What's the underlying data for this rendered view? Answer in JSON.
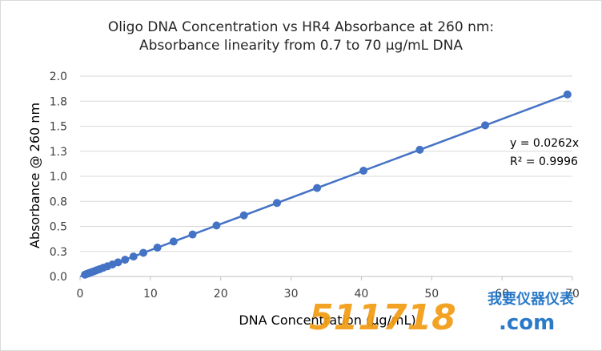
{
  "chart_data": {
    "type": "scatter",
    "title": "Oligo DNA Concentration vs HR4 Absorbance at 260 nm:",
    "subtitle": "Absorbance linearity from 0.7 to 70 µg/mL DNA",
    "xlabel": "DNA Concentration (µg/mL)",
    "ylabel": "Absorbance @ 260 nm",
    "xlim": [
      0,
      70
    ],
    "ylim": [
      0,
      2.0
    ],
    "x_ticks": [
      "0",
      "10",
      "20",
      "30",
      "40",
      "50",
      "60",
      "70"
    ],
    "y_ticks": [
      "0.0",
      "0.3",
      "0.5",
      "0.8",
      "1.0",
      "1.3",
      "1.5",
      "1.8",
      "2.0"
    ],
    "grid": "horizontal",
    "legend": "none",
    "series": [
      {
        "marker_color": "#4472c4",
        "x": [
          0.7,
          0.9,
          1.1,
          1.3,
          1.5,
          1.8,
          2.1,
          2.4,
          2.8,
          3.3,
          3.9,
          4.6,
          5.4,
          6.4,
          7.6,
          9.0,
          11.0,
          13.3,
          16.0,
          19.4,
          23.3,
          28.0,
          33.7,
          40.3,
          48.3,
          57.6,
          69.3
        ],
        "y": [
          0.018,
          0.024,
          0.029,
          0.034,
          0.04,
          0.047,
          0.055,
          0.063,
          0.073,
          0.087,
          0.102,
          0.12,
          0.141,
          0.167,
          0.199,
          0.236,
          0.288,
          0.349,
          0.419,
          0.509,
          0.61,
          0.734,
          0.883,
          1.056,
          1.265,
          1.509,
          1.817
        ]
      }
    ],
    "trendline": {
      "equation": "y = 0.0262x",
      "r_squared": "R² = 0.9996",
      "slope": 0.0262,
      "color": "#4472c4"
    }
  },
  "watermark": {
    "number": "511718",
    "brand_cn": "我要仪器仪表",
    "domain": ".com"
  }
}
